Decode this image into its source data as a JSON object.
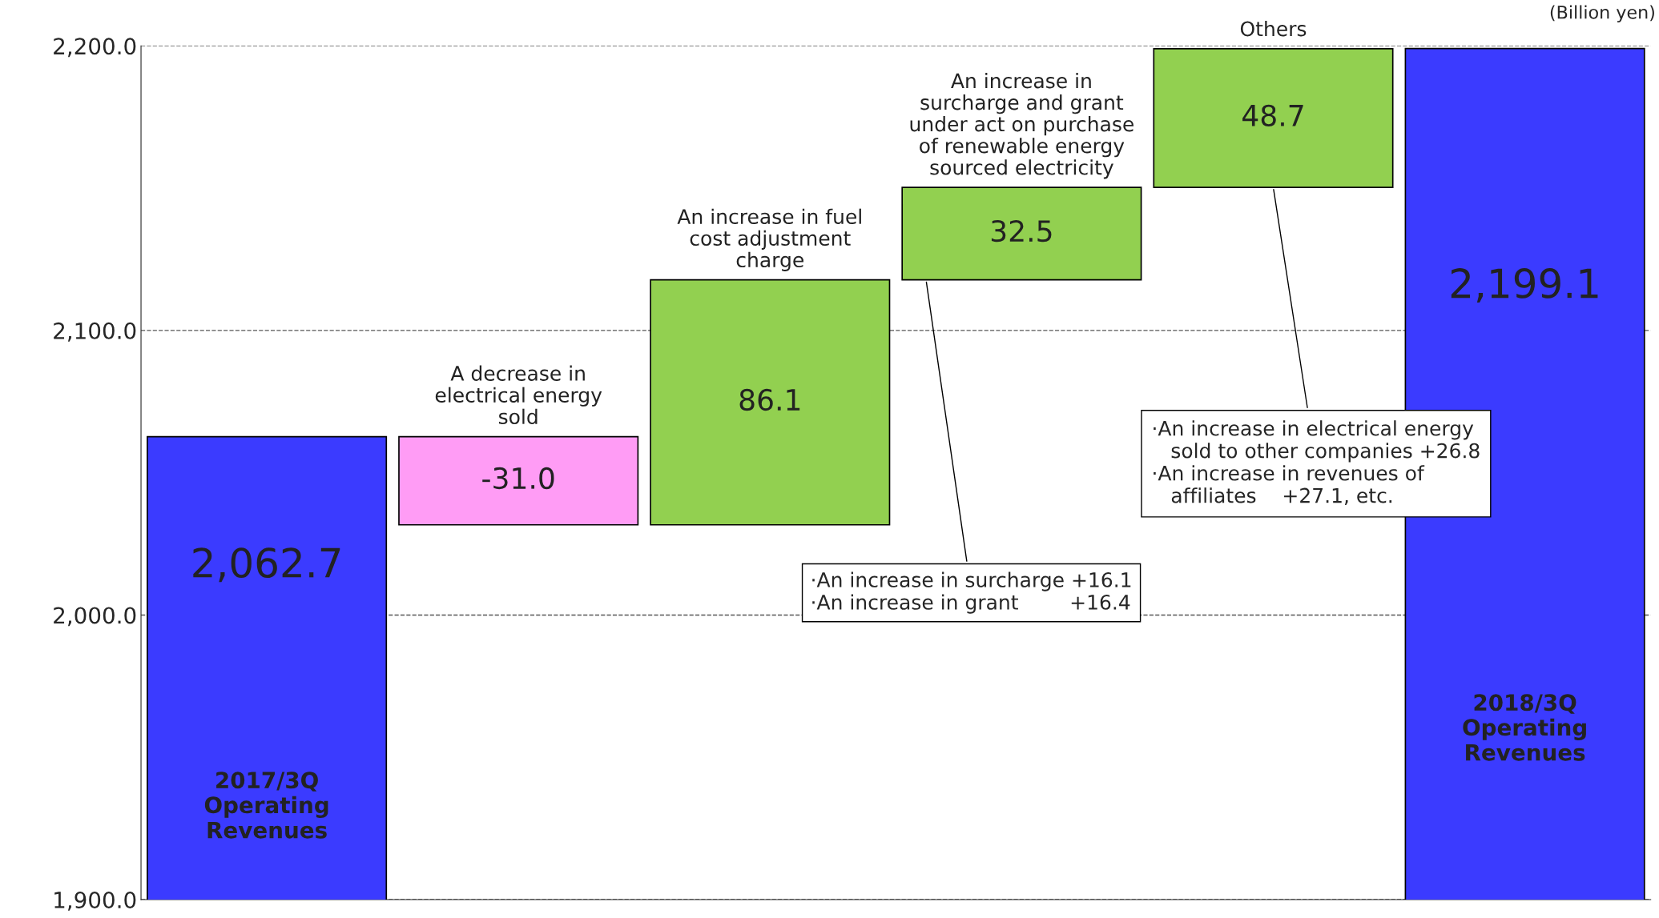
{
  "chart_data": {
    "type": "bar",
    "categories": [
      "2017/3Q\nOperating\nRevenues",
      "A decrease in\nelectrical energy\nsold",
      "An increase in fuel\ncost adjustment\ncharge",
      "An increase in\nsurcharge and grant\nunder act on purchase\nof renewable energy\nsourced electricity",
      "Others",
      "2018/3Q\nOperating\nRevenues"
    ],
    "values": [
      2062.7,
      -31.0,
      86.1,
      32.5,
      48.7,
      2199.1
    ],
    "base": [
      null,
      2062.7,
      2031.7,
      2117.8,
      2150.3,
      null
    ],
    "colors": [
      "#3b3bff",
      "#ff9cf5",
      "#92d050",
      "#92d050",
      "#92d050",
      "#3b3bff"
    ],
    "value_labels": [
      "2,062.7",
      "-31.0",
      "86.1",
      "32.5",
      "48.7",
      "2,199.1"
    ],
    "ylim": [
      1900,
      2200
    ],
    "yticks": [
      {
        "value": 1900,
        "label": "1,900.0"
      },
      {
        "value": 2000,
        "label": "2,000.0"
      },
      {
        "value": 2100,
        "label": "2,100.0"
      },
      {
        "value": 2200,
        "label": "2,200.0"
      }
    ],
    "grid": "y",
    "annotations": [
      "(Billion yen)",
      "·An increase in surcharge +16.1\n·An increase in grant        +16.4",
      "·An increase in electrical energy\n   sold to other companies +26.8\n·An increase in revenues of\n   affiliates    +27.1, etc."
    ]
  }
}
